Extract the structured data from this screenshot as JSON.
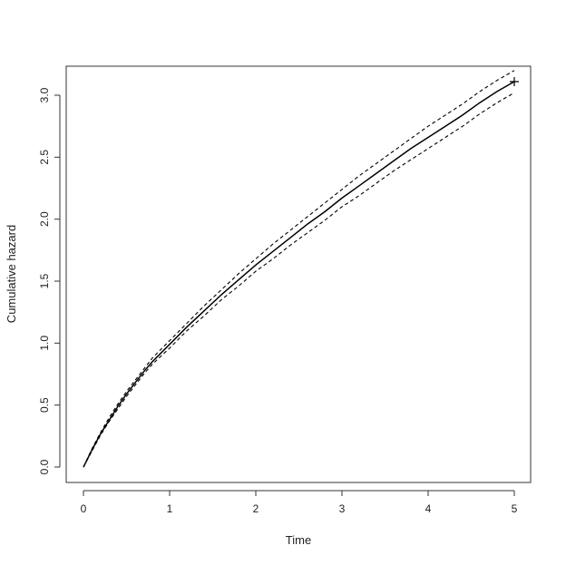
{
  "chart_data": {
    "type": "line",
    "xlabel": "Time",
    "ylabel": "Cumulative hazard",
    "xlim": [
      0,
      5
    ],
    "ylim": [
      0,
      3
    ],
    "x_ticks": [
      0,
      1,
      2,
      3,
      4,
      5
    ],
    "y_ticks": [
      0.0,
      0.5,
      1.0,
      1.5,
      2.0,
      2.5,
      3.0
    ],
    "x_tick_labels": [
      "0",
      "1",
      "2",
      "3",
      "4",
      "5"
    ],
    "y_tick_labels": [
      "0.0",
      "0.5",
      "1.0",
      "1.5",
      "2.0",
      "2.5",
      "3.0"
    ],
    "grid": false,
    "series": [
      {
        "style": "solid",
        "x": [
          0,
          0.1,
          0.2,
          0.3,
          0.4,
          0.5,
          0.6,
          0.7,
          0.8,
          1.0,
          1.2,
          1.4,
          1.6,
          1.8,
          2.0,
          2.2,
          2.4,
          2.6,
          2.8,
          3.0,
          3.2,
          3.4,
          3.6,
          3.8,
          4.0,
          4.2,
          4.4,
          4.6,
          4.8,
          5.0
        ],
        "y": [
          0,
          0.14,
          0.27,
          0.38,
          0.49,
          0.59,
          0.68,
          0.77,
          0.85,
          0.99,
          1.13,
          1.26,
          1.39,
          1.51,
          1.63,
          1.74,
          1.85,
          1.96,
          2.06,
          2.17,
          2.27,
          2.37,
          2.47,
          2.57,
          2.66,
          2.75,
          2.84,
          2.94,
          3.03,
          3.11
        ]
      },
      {
        "style": "dashed",
        "x": [
          0,
          0.1,
          0.2,
          0.3,
          0.4,
          0.5,
          0.6,
          0.7,
          0.8,
          1.0,
          1.2,
          1.4,
          1.6,
          1.8,
          2.0,
          2.2,
          2.4,
          2.6,
          2.8,
          3.0,
          3.2,
          3.4,
          3.6,
          3.8,
          4.0,
          4.2,
          4.4,
          4.6,
          4.8,
          5.0
        ],
        "y": [
          0,
          0.15,
          0.28,
          0.4,
          0.51,
          0.61,
          0.7,
          0.79,
          0.88,
          1.02,
          1.16,
          1.3,
          1.43,
          1.56,
          1.68,
          1.8,
          1.91,
          2.02,
          2.13,
          2.24,
          2.35,
          2.45,
          2.55,
          2.65,
          2.75,
          2.84,
          2.93,
          3.03,
          3.12,
          3.2
        ]
      },
      {
        "style": "dashed",
        "x": [
          0,
          0.1,
          0.2,
          0.3,
          0.4,
          0.5,
          0.6,
          0.7,
          0.8,
          1.0,
          1.2,
          1.4,
          1.6,
          1.8,
          2.0,
          2.2,
          2.4,
          2.6,
          2.8,
          3.0,
          3.2,
          3.4,
          3.6,
          3.8,
          4.0,
          4.2,
          4.4,
          4.6,
          4.8,
          5.0
        ],
        "y": [
          0,
          0.13,
          0.26,
          0.37,
          0.47,
          0.57,
          0.66,
          0.75,
          0.83,
          0.96,
          1.1,
          1.22,
          1.35,
          1.46,
          1.58,
          1.68,
          1.79,
          1.89,
          1.99,
          2.1,
          2.19,
          2.29,
          2.39,
          2.48,
          2.57,
          2.66,
          2.75,
          2.85,
          2.94,
          3.02
        ]
      }
    ],
    "end_marker": {
      "x": 5.0,
      "y": 3.11,
      "symbol": "+"
    },
    "colors": {
      "line": "#000000",
      "axis": "#333333"
    }
  }
}
